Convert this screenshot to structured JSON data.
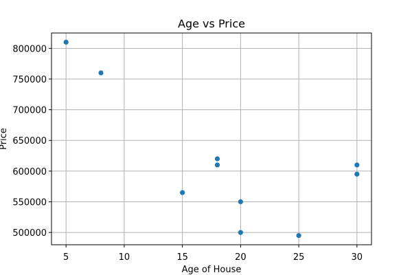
{
  "chart_data": {
    "type": "scatter",
    "title": "Age vs Price",
    "xlabel": "Age of House",
    "ylabel": "Price",
    "xlim": [
      3.75,
      31.25
    ],
    "ylim": [
      480000,
      825000
    ],
    "xticks": [
      5,
      10,
      15,
      20,
      25,
      30
    ],
    "yticks": [
      500000,
      550000,
      600000,
      650000,
      700000,
      750000,
      800000
    ],
    "grid": true,
    "marker_color": "#1f77b4",
    "points": [
      {
        "x": 5,
        "y": 810000
      },
      {
        "x": 8,
        "y": 760000
      },
      {
        "x": 15,
        "y": 565000
      },
      {
        "x": 18,
        "y": 620000
      },
      {
        "x": 18,
        "y": 610000
      },
      {
        "x": 20,
        "y": 550000
      },
      {
        "x": 20,
        "y": 500000
      },
      {
        "x": 25,
        "y": 495000
      },
      {
        "x": 30,
        "y": 610000
      },
      {
        "x": 30,
        "y": 595000
      }
    ]
  }
}
